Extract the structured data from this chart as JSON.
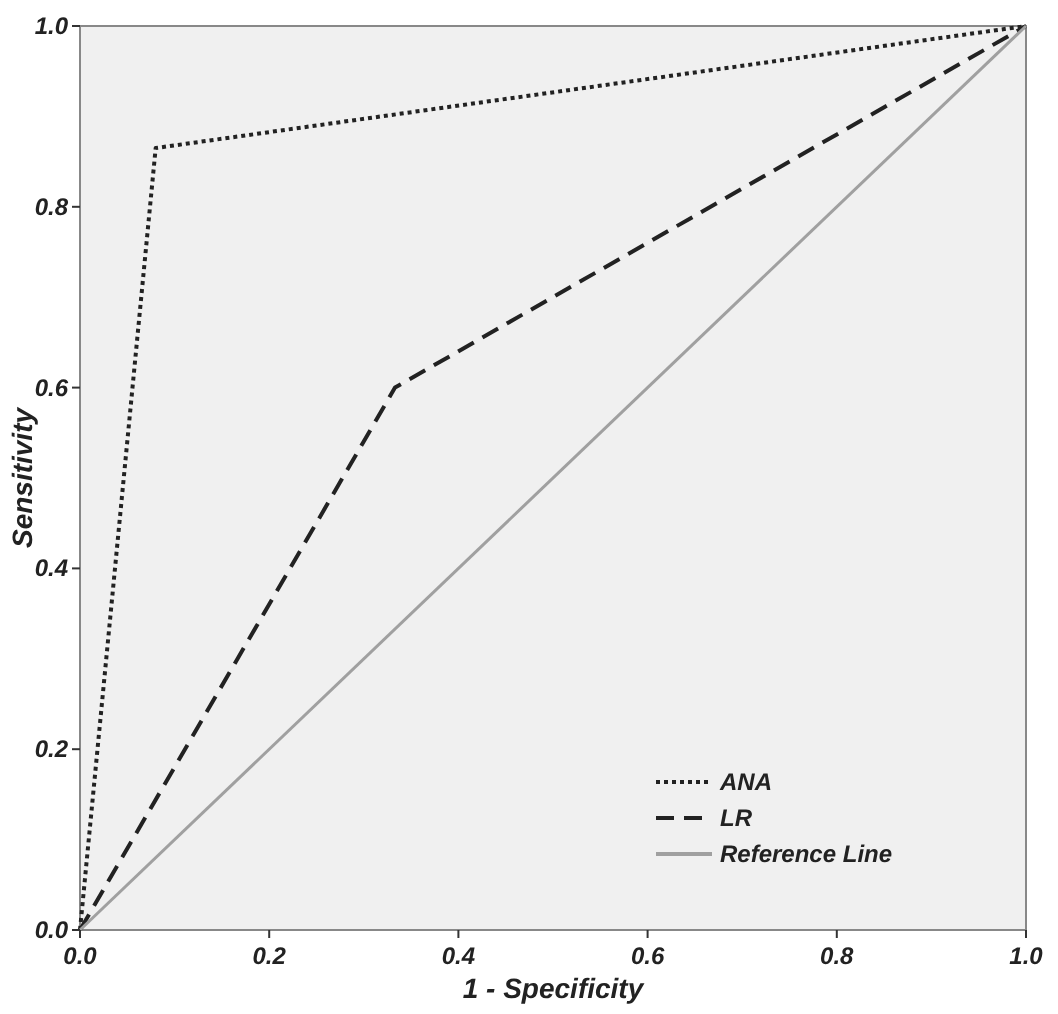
{
  "chart_data": {
    "type": "line",
    "xlabel": "1 - Specificity",
    "ylabel": "Sensitivity",
    "xlim": [
      0,
      1
    ],
    "ylim": [
      0,
      1
    ],
    "xticks": [
      {
        "value": 0,
        "label": "0.0"
      },
      {
        "value": 0.2,
        "label": "0.2"
      },
      {
        "value": 0.4,
        "label": "0.4"
      },
      {
        "value": 0.6,
        "label": "0.6"
      },
      {
        "value": 0.8,
        "label": "0.8"
      },
      {
        "value": 1,
        "label": "1.0"
      }
    ],
    "yticks": [
      {
        "value": 0,
        "label": "0.0"
      },
      {
        "value": 0.2,
        "label": "0.2"
      },
      {
        "value": 0.4,
        "label": "0.4"
      },
      {
        "value": 0.6,
        "label": "0.6"
      },
      {
        "value": 0.8,
        "label": "0.8"
      },
      {
        "value": 1,
        "label": "1.0"
      }
    ],
    "grid": false,
    "legend": "bottom right",
    "series": [
      {
        "name": "ANA",
        "color": "#222222",
        "line_style": "dotted",
        "x": [
          0,
          0.08,
          1
        ],
        "values": [
          0,
          0.865,
          1
        ]
      },
      {
        "name": "LR",
        "color": "#222222",
        "line_style": "dashed",
        "x": [
          0,
          0.333,
          1
        ],
        "values": [
          0,
          0.6,
          1
        ]
      },
      {
        "name": "Reference Line",
        "color": "#a0a0a0",
        "line_style": "solid",
        "x": [
          0,
          1
        ],
        "values": [
          0,
          1
        ]
      }
    ]
  }
}
